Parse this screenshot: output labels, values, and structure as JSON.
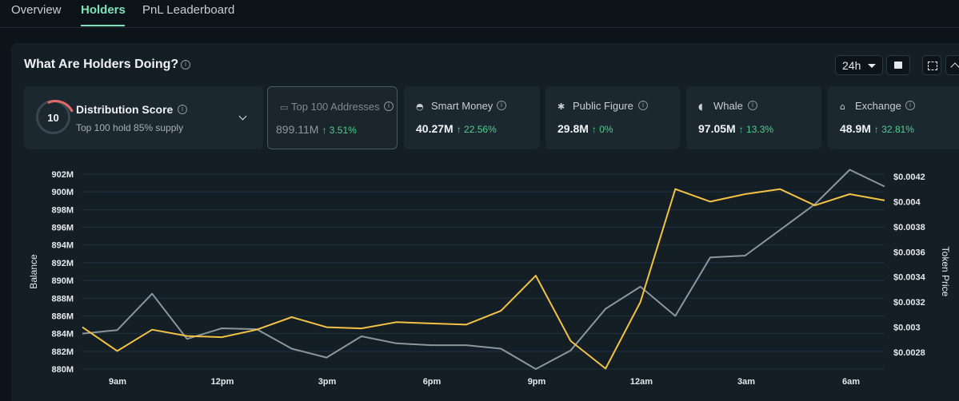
{
  "tabs": [
    {
      "label": "Overview",
      "active": false
    },
    {
      "label": "Holders",
      "active": true
    },
    {
      "label": "PnL Leaderboard",
      "active": false
    }
  ],
  "panel": {
    "title": "What Are Holders Doing?",
    "period": "24h",
    "info_icon": "info-icon",
    "calendar_icon": "calendar-icon",
    "expand_icon": "expand-icon",
    "collapse_icon": "chevron-up-icon"
  },
  "distribution": {
    "score": "10",
    "title": "Distribution Score",
    "subtitle": "Top 100 hold 85% supply"
  },
  "categories": [
    {
      "icon": "wallet-icon",
      "glyph": "▭",
      "label": "Top 100 Addresses",
      "value": "899.11M",
      "change": "↑ 3.51%",
      "selected": true
    },
    {
      "icon": "smart-money-icon",
      "glyph": "◓",
      "label": "Smart Money",
      "value": "40.27M",
      "change": "↑ 22.56%",
      "selected": false
    },
    {
      "icon": "public-figure-icon",
      "glyph": "✱",
      "label": "Public Figure",
      "value": "29.8M",
      "change": "↑ 0%",
      "selected": false
    },
    {
      "icon": "whale-icon",
      "glyph": "◖",
      "label": "Whale",
      "value": "97.05M",
      "change": "↑ 13.3%",
      "selected": false
    },
    {
      "icon": "exchange-icon",
      "glyph": "⌂",
      "label": "Exchange",
      "value": "48.9M",
      "change": "↑ 32.81%",
      "selected": false
    }
  ],
  "chart_data": {
    "type": "line",
    "xlabel": "",
    "ylabel": "Balance",
    "y2label": "Token Price",
    "x_ticks": [
      "9am",
      "12pm",
      "3pm",
      "6pm",
      "9pm",
      "12am",
      "3am",
      "6am"
    ],
    "y_ticks": [
      "902M",
      "900M",
      "898M",
      "896M",
      "894M",
      "892M",
      "890M",
      "888M",
      "886M",
      "884M",
      "882M",
      "880M"
    ],
    "y2_ticks": [
      "$0.0042",
      "$0.004",
      "$0.0038",
      "$0.0036",
      "$0.0034",
      "$0.0032",
      "$0.003",
      "$0.0028"
    ],
    "ylim": [
      880,
      902
    ],
    "y2lim": [
      0.00266,
      0.00428
    ],
    "grid": true,
    "series": [
      {
        "axis": "left",
        "color": "#8b969d",
        "values": [
          884.0,
          884.4,
          888.5,
          883.4,
          884.6,
          884.5,
          882.3,
          881.3,
          883.7,
          882.9,
          882.7,
          882.7,
          882.3,
          880.0,
          882.1,
          886.8,
          889.3,
          886.0,
          892.6,
          892.8,
          895.7,
          898.6,
          902.5,
          900.6
        ]
      },
      {
        "axis": "right",
        "color": "#f3c245",
        "values": [
          0.003,
          0.00281,
          0.00298,
          0.00293,
          0.00292,
          0.00298,
          0.00308,
          0.003,
          0.00299,
          0.00304,
          0.00303,
          0.00302,
          0.00313,
          0.00341,
          0.00289,
          0.00267,
          0.0032,
          0.0041,
          0.004,
          0.00406,
          0.0041,
          0.00397,
          0.00406,
          0.00401
        ]
      }
    ]
  }
}
